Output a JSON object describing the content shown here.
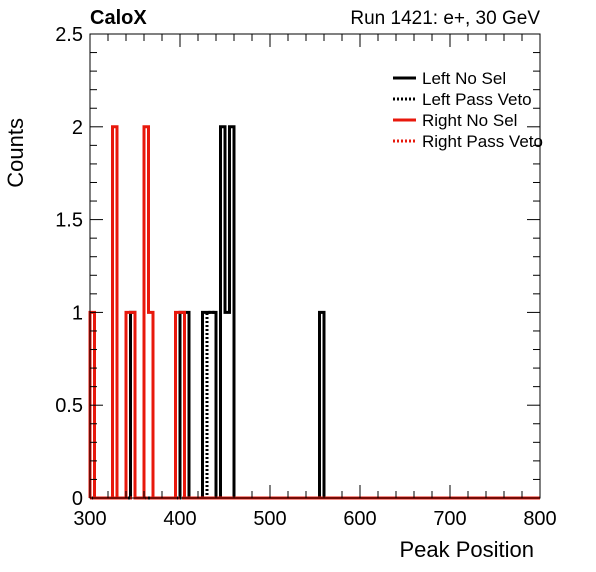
{
  "header": {
    "experiment": "CaloX",
    "run_info": "Run 1421: e+, 30 GeV"
  },
  "chart_data": {
    "type": "histogram",
    "title": "",
    "xlabel": "Peak Position",
    "ylabel": "Counts",
    "xlim": [
      300,
      800
    ],
    "ylim": [
      0,
      2.5
    ],
    "x_ticks": [
      "300",
      "400",
      "500",
      "600",
      "700",
      "800"
    ],
    "y_ticks": [
      "0",
      "0.5",
      "1",
      "1.5",
      "2",
      "2.5"
    ],
    "legend_position": "top-right",
    "series": [
      {
        "name": "Left No Sel",
        "color": "#000000",
        "style": "solid",
        "bins": [
          {
            "x0": 345,
            "x1": 350,
            "count": 1
          },
          {
            "x0": 400,
            "x1": 410,
            "count": 1
          },
          {
            "x0": 425,
            "x1": 440,
            "count": 1
          },
          {
            "x0": 445,
            "x1": 450,
            "count": 2
          },
          {
            "x0": 450,
            "x1": 455,
            "count": 1
          },
          {
            "x0": 455,
            "x1": 460,
            "count": 2
          },
          {
            "x0": 555,
            "x1": 560,
            "count": 1
          }
        ]
      },
      {
        "name": "Left Pass Veto",
        "color": "#000000",
        "style": "dotted",
        "bins": [
          {
            "x0": 430,
            "x1": 440,
            "count": 1
          }
        ]
      },
      {
        "name": "Right No Sel",
        "color": "#e8180c",
        "style": "solid",
        "bins": [
          {
            "x0": 300,
            "x1": 305,
            "count": 1
          },
          {
            "x0": 325,
            "x1": 330,
            "count": 2
          },
          {
            "x0": 340,
            "x1": 350,
            "count": 1
          },
          {
            "x0": 360,
            "x1": 365,
            "count": 2
          },
          {
            "x0": 365,
            "x1": 370,
            "count": 1
          },
          {
            "x0": 395,
            "x1": 400,
            "count": 1
          },
          {
            "x0": 400,
            "x1": 405,
            "count": 1
          }
        ]
      },
      {
        "name": "Right Pass Veto",
        "color": "#e8180c",
        "style": "dotted",
        "bins": []
      }
    ]
  }
}
